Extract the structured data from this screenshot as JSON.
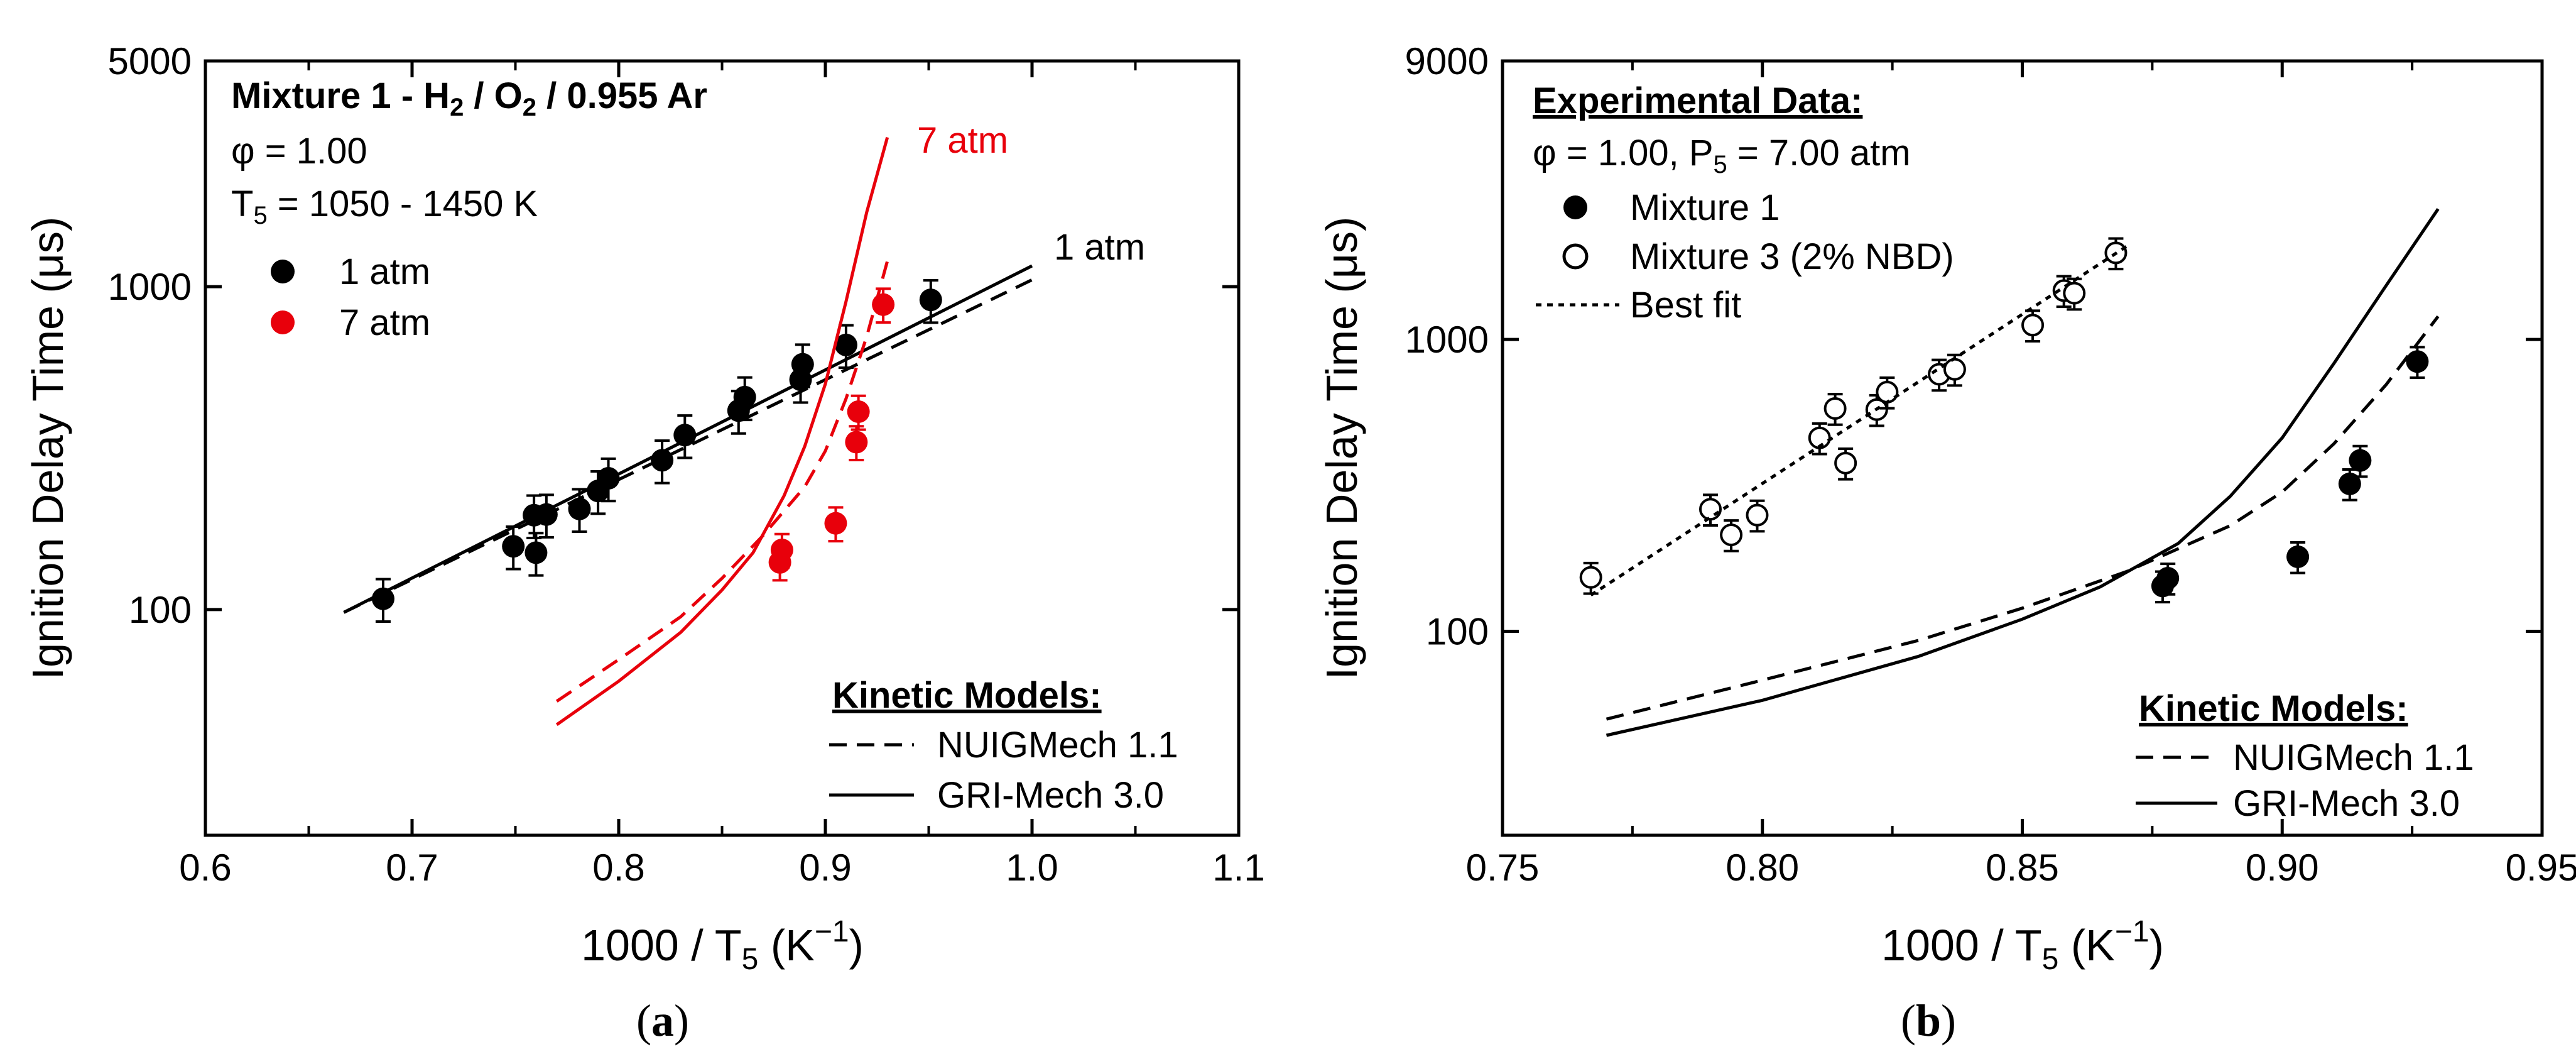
{
  "chart_data": [
    {
      "type": "scatter",
      "panel_label": "a",
      "xlabel": "1000 / T5 (K−1)",
      "ylabel": "Ignition Delay Time (μs)",
      "xlim": [
        0.6,
        1.1
      ],
      "ylim": [
        20,
        5000
      ],
      "yscale": "log",
      "x_ticks": [
        "0.6",
        "0.7",
        "0.8",
        "0.9",
        "1.0",
        "1.1"
      ],
      "y_ticks": [
        "100",
        "1000",
        "5000"
      ],
      "annotations": {
        "mixture": "Mixture 1 - H2 / O2 / 0.955 Ar",
        "phi": "φ = 1.00",
        "temperature": "T5 = 1050 - 1450 K",
        "label_7atm": "7 atm",
        "label_1atm": "1 atm"
      },
      "legend_data": [
        {
          "label": "1 atm",
          "color": "#000000"
        },
        {
          "label": "7 atm",
          "color": "#e8000b"
        }
      ],
      "legend_models": {
        "title": "Kinetic Models:",
        "items": [
          {
            "label": "NUIGMech 1.1",
            "style": "dashed"
          },
          {
            "label": "GRI-Mech 3.0",
            "style": "solid"
          }
        ]
      },
      "series": [
        {
          "name": "1 atm",
          "kind": "points",
          "color": "#000000",
          "x": [
            0.686,
            0.749,
            0.759,
            0.76,
            0.765,
            0.781,
            0.79,
            0.795,
            0.821,
            0.832,
            0.858,
            0.861,
            0.888,
            0.889,
            0.91,
            0.951
          ],
          "y": [
            108,
            157,
            196,
            150,
            197,
            205,
            233,
            255,
            290,
            347,
            413,
            455,
            515,
            575,
            660,
            910
          ],
          "err": [
            0.15,
            0.15,
            0.15,
            0.15,
            0.15,
            0.15,
            0.15,
            0.15,
            0.15,
            0.15,
            0.15,
            0.15,
            0.15,
            0.15,
            0.15,
            0.15
          ]
        },
        {
          "name": "7 atm",
          "kind": "points",
          "color": "#e8000b",
          "x": [
            0.878,
            0.879,
            0.905,
            0.915,
            0.916,
            0.928
          ],
          "y": [
            140,
            153,
            185,
            330,
            410,
            880
          ],
          "err": [
            0.12,
            0.12,
            0.12,
            0.12,
            0.12,
            0.12
          ]
        },
        {
          "name": "",
          "kind": "line",
          "model": "GRI-Mech 3.0",
          "pressure": "1 atm",
          "color": "#000000",
          "style": "solid",
          "x": [
            0.667,
            1.0
          ],
          "y": [
            98,
            1160
          ]
        },
        {
          "name": "",
          "kind": "line",
          "model": "NUIGMech 1.1",
          "pressure": "1 atm",
          "color": "#000000",
          "style": "dashed",
          "x": [
            0.667,
            1.0
          ],
          "y": [
            98,
            1050
          ]
        },
        {
          "name": "",
          "kind": "line",
          "model": "GRI-Mech 3.0",
          "pressure": "7 atm",
          "color": "#e8000b",
          "style": "solid",
          "x": [
            0.77,
            0.8,
            0.83,
            0.85,
            0.865,
            0.88,
            0.89,
            0.9,
            0.91,
            0.92,
            0.93
          ],
          "y": [
            44,
            60,
            85,
            115,
            150,
            225,
            320,
            500,
            900,
            1700,
            2900
          ]
        },
        {
          "name": "",
          "kind": "line",
          "model": "NUIGMech 1.1",
          "pressure": "7 atm",
          "color": "#e8000b",
          "style": "dashed",
          "x": [
            0.77,
            0.8,
            0.83,
            0.85,
            0.87,
            0.89,
            0.9,
            0.91,
            0.92,
            0.93
          ],
          "y": [
            52,
            70,
            95,
            125,
            170,
            240,
            310,
            450,
            700,
            1200
          ]
        }
      ]
    },
    {
      "type": "scatter",
      "panel_label": "b",
      "xlabel": "1000 / T5 (K−1)",
      "ylabel": "Ignition Delay Time (μs)",
      "xlim": [
        0.75,
        0.95
      ],
      "ylim": [
        20,
        9000
      ],
      "yscale": "log",
      "x_ticks": [
        "0.75",
        "0.80",
        "0.85",
        "0.90",
        "0.95"
      ],
      "y_ticks": [
        "100",
        "1000",
        "9000"
      ],
      "annotations": {
        "experimental_title": "Experimental Data:",
        "conditions": "φ = 1.00, P5 = 7.00 atm"
      },
      "legend_data": [
        {
          "label": "Mixture 1",
          "marker": "filled"
        },
        {
          "label": "Mixture 3 (2% NBD)",
          "marker": "open"
        },
        {
          "label": "Best fit",
          "style": "dotted"
        }
      ],
      "legend_models": {
        "title": "Kinetic Models:",
        "items": [
          {
            "label": "NUIGMech 1.1",
            "style": "dashed"
          },
          {
            "label": "GRI-Mech 3.0",
            "style": "solid"
          }
        ]
      },
      "series": [
        {
          "name": "Mixture 1",
          "kind": "points",
          "marker": "filled",
          "x": [
            0.877,
            0.878,
            0.903,
            0.913,
            0.915,
            0.926
          ],
          "y": [
            143,
            152,
            180,
            320,
            385,
            840
          ],
          "err": [
            0.12,
            0.12,
            0.12,
            0.12,
            0.12,
            0.12
          ]
        },
        {
          "name": "Mixture 3 (2% NBD)",
          "kind": "points",
          "marker": "open",
          "x": [
            0.767,
            0.79,
            0.794,
            0.799,
            0.811,
            0.814,
            0.816,
            0.822,
            0.824,
            0.834,
            0.837,
            0.852,
            0.858,
            0.86,
            0.868
          ],
          "y": [
            153,
            262,
            214,
            250,
            460,
            580,
            377,
            575,
            660,
            760,
            790,
            1120,
            1470,
            1440,
            1980
          ],
          "err": [
            0.12,
            0.12,
            0.12,
            0.12,
            0.12,
            0.12,
            0.12,
            0.12,
            0.12,
            0.12,
            0.12,
            0.12,
            0.12,
            0.12,
            0.12
          ]
        },
        {
          "name": "Best fit",
          "kind": "line",
          "style": "dotted",
          "x": [
            0.767,
            0.87
          ],
          "y": [
            133,
            2080
          ]
        },
        {
          "name": "",
          "kind": "line",
          "model": "GRI-Mech 3.0",
          "style": "solid",
          "x": [
            0.77,
            0.8,
            0.83,
            0.85,
            0.865,
            0.88,
            0.89,
            0.9,
            0.91,
            0.92,
            0.93
          ],
          "y": [
            44,
            58,
            82,
            110,
            142,
            200,
            290,
            460,
            830,
            1530,
            2800
          ]
        },
        {
          "name": "",
          "kind": "line",
          "model": "NUIGMech 1.1",
          "style": "dashed",
          "x": [
            0.77,
            0.8,
            0.83,
            0.85,
            0.87,
            0.89,
            0.9,
            0.91,
            0.92,
            0.93
          ],
          "y": [
            50,
            68,
            93,
            120,
            160,
            230,
            300,
            440,
            700,
            1200
          ]
        }
      ]
    }
  ]
}
